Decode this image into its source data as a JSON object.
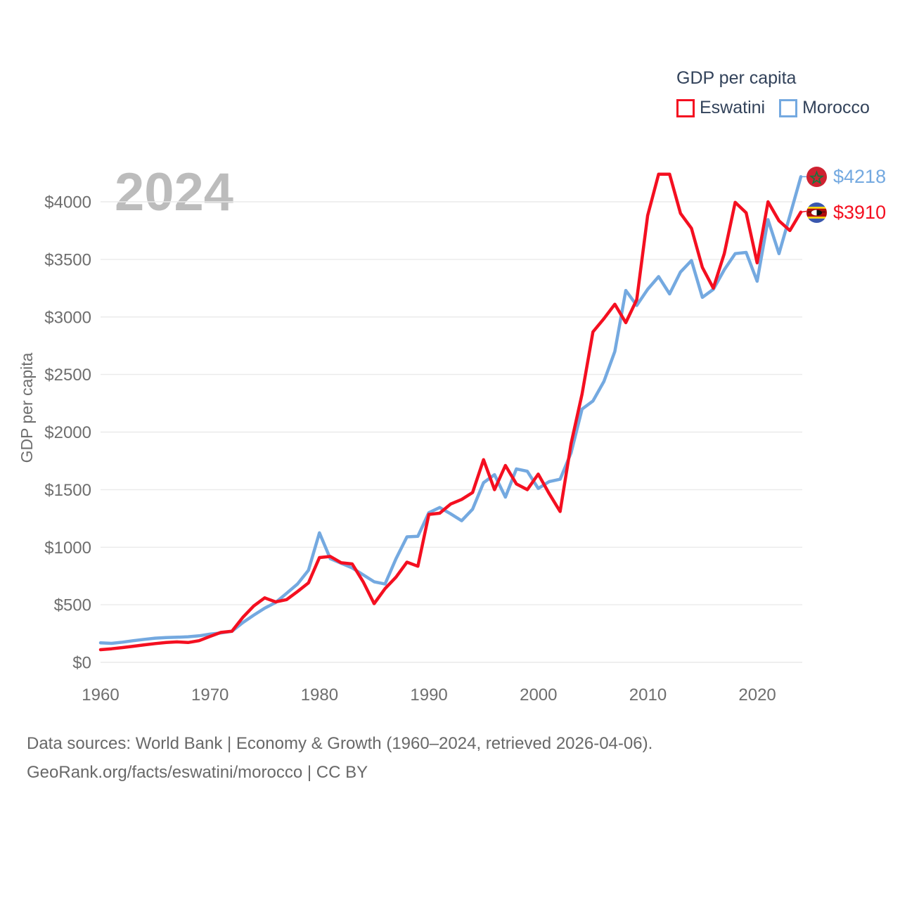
{
  "legend": {
    "title": "GDP per capita",
    "items": [
      {
        "label": "Eswatini",
        "color": "#f40f20"
      },
      {
        "label": "Morocco",
        "color": "#74a9e0"
      }
    ]
  },
  "watermark": "2024",
  "end_labels": [
    {
      "country": "Morocco",
      "value": "$4218",
      "color": "#74a9e0"
    },
    {
      "country": "Eswatini",
      "value": "$3910",
      "color": "#f40f20"
    }
  ],
  "caption": {
    "line1": "Data sources: World Bank | Economy & Growth (1960–2024, retrieved 2026-04-06).",
    "line2": "GeoRank.org/facts/eswatini/morocco | CC BY"
  },
  "chart_data": {
    "type": "line",
    "title": "GDP per capita",
    "ylabel": "GDP per capita",
    "xlabel": "",
    "grid": true,
    "legend_position": "top-right",
    "xlim": [
      1960,
      2024
    ],
    "ylim": [
      0,
      4345
    ],
    "yticks": [
      0,
      500,
      1000,
      1500,
      2000,
      2500,
      3000,
      3500,
      4000
    ],
    "ytick_labels": [
      "$0",
      "$500",
      "$1000",
      "$1500",
      "$2000",
      "$2500",
      "$3000",
      "$3500",
      "$4000"
    ],
    "xticks": [
      1960,
      1970,
      1980,
      1990,
      2000,
      2010,
      2020
    ],
    "xtick_labels": [
      "1960",
      "1970",
      "1980",
      "1990",
      "2000",
      "2010",
      "2020"
    ],
    "x": [
      1960,
      1961,
      1962,
      1963,
      1964,
      1965,
      1966,
      1967,
      1968,
      1969,
      1970,
      1971,
      1972,
      1973,
      1974,
      1975,
      1976,
      1977,
      1978,
      1979,
      1980,
      1981,
      1982,
      1983,
      1984,
      1985,
      1986,
      1987,
      1988,
      1989,
      1990,
      1991,
      1992,
      1993,
      1994,
      1995,
      1996,
      1997,
      1998,
      1999,
      2000,
      2001,
      2002,
      2003,
      2004,
      2005,
      2006,
      2007,
      2008,
      2009,
      2010,
      2011,
      2012,
      2013,
      2014,
      2015,
      2016,
      2017,
      2018,
      2019,
      2020,
      2021,
      2022,
      2023,
      2024
    ],
    "series": [
      {
        "name": "Eswatini",
        "color": "#f40f20",
        "values": [
          110,
          118,
          128,
          140,
          152,
          163,
          172,
          178,
          172,
          188,
          225,
          260,
          270,
          390,
          490,
          560,
          525,
          545,
          615,
          690,
          910,
          920,
          865,
          855,
          700,
          510,
          640,
          740,
          870,
          835,
          1285,
          1295,
          1375,
          1415,
          1475,
          1760,
          1500,
          1710,
          1550,
          1500,
          1635,
          1465,
          1310,
          1900,
          2330,
          2870,
          2985,
          3110,
          2950,
          3150,
          3880,
          4240,
          4240,
          3900,
          3770,
          3430,
          3250,
          3550,
          3995,
          3905,
          3470,
          4000,
          3835,
          3750,
          3910
        ]
      },
      {
        "name": "Morocco",
        "color": "#74a9e0",
        "values": [
          170,
          165,
          175,
          188,
          200,
          210,
          215,
          218,
          222,
          230,
          245,
          255,
          270,
          345,
          410,
          470,
          520,
          600,
          680,
          800,
          1125,
          900,
          860,
          820,
          760,
          700,
          680,
          900,
          1090,
          1095,
          1300,
          1345,
          1290,
          1230,
          1330,
          1560,
          1630,
          1435,
          1680,
          1660,
          1510,
          1570,
          1590,
          1820,
          2200,
          2270,
          2440,
          2700,
          3230,
          3100,
          3240,
          3350,
          3200,
          3390,
          3490,
          3170,
          3240,
          3410,
          3550,
          3560,
          3310,
          3845,
          3550,
          3880,
          4218
        ]
      }
    ],
    "end_values": {
      "Morocco": 4218,
      "Eswatini": 3910
    }
  }
}
